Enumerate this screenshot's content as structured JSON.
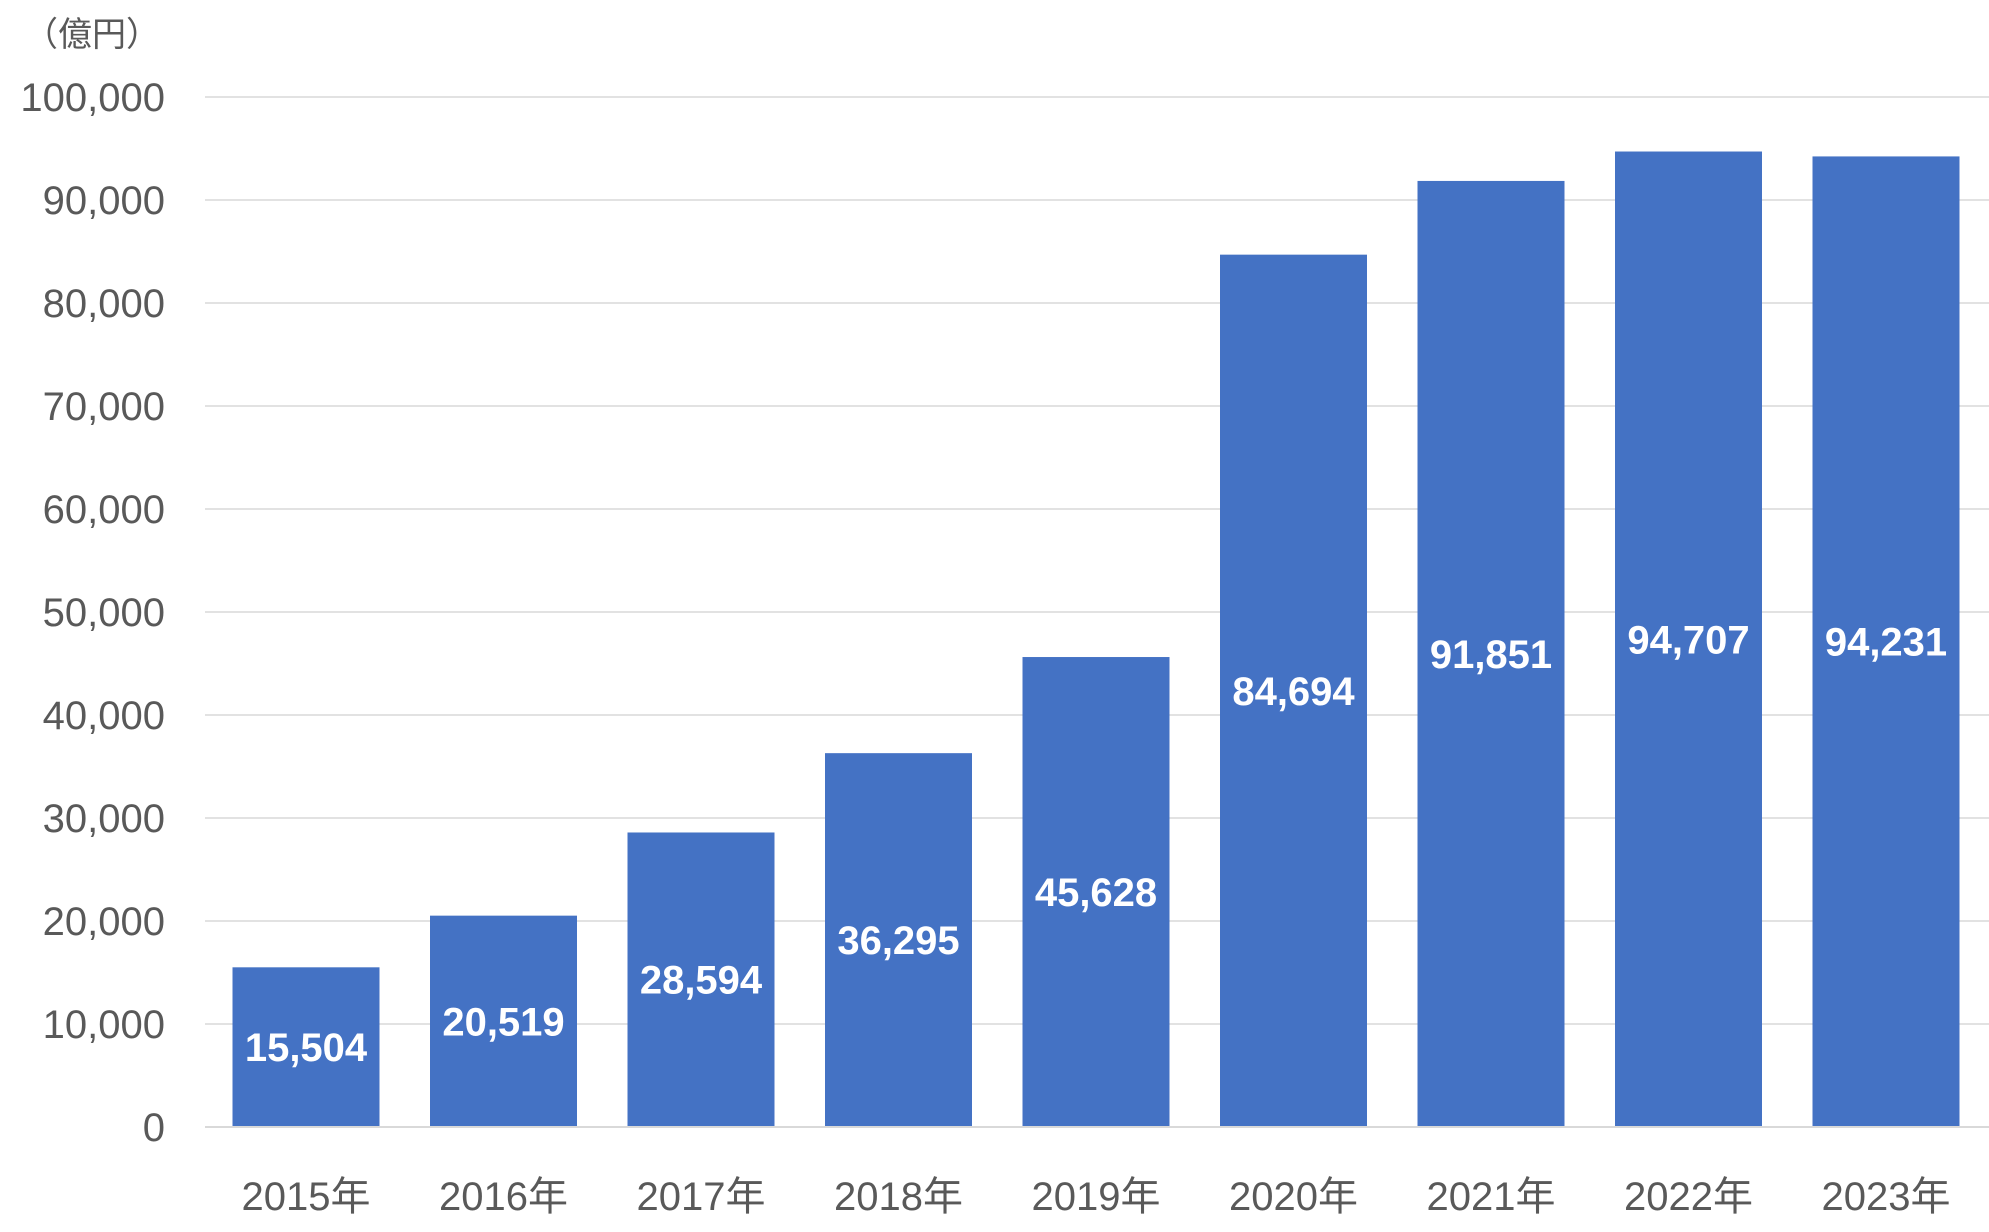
{
  "chart_data": {
    "type": "bar",
    "title": "",
    "unit_label": "（億円）",
    "xlabel": "",
    "ylabel": "",
    "categories": [
      "2015年",
      "2016年",
      "2017年",
      "2018年",
      "2019年",
      "2020年",
      "2021年",
      "2022年",
      "2023年"
    ],
    "values": [
      15504,
      20519,
      28594,
      36295,
      45628,
      84694,
      91851,
      94707,
      94231
    ],
    "value_labels": [
      "15,504",
      "20,519",
      "28,594",
      "36,295",
      "45,628",
      "84,694",
      "91,851",
      "94,707",
      "94,231"
    ],
    "y_ticks": [
      0,
      10000,
      20000,
      30000,
      40000,
      50000,
      60000,
      70000,
      80000,
      90000,
      100000
    ],
    "y_tick_labels": [
      "0",
      "10,000",
      "20,000",
      "30,000",
      "40,000",
      "50,000",
      "60,000",
      "70,000",
      "80,000",
      "90,000",
      "100,000"
    ],
    "ylim": [
      0,
      100000
    ],
    "grid": true,
    "legend": "none",
    "bar_color": "#4472c4",
    "grid_color": "#d9d9d9",
    "tick_color": "#595959",
    "data_label_color": "#ffffff"
  }
}
